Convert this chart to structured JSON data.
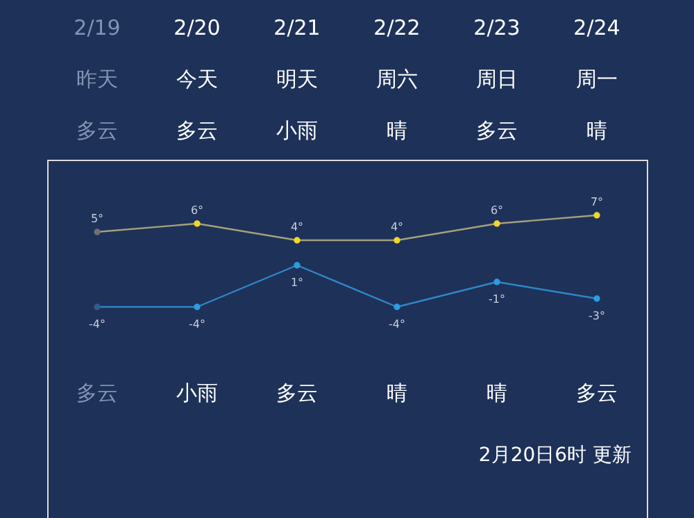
{
  "chart_data": {
    "type": "line",
    "categories": [
      "2/19",
      "2/20",
      "2/21",
      "2/22",
      "2/23",
      "2/24"
    ],
    "series": [
      {
        "color": "#a3a17c",
        "line_style": "solid",
        "colors": [
          "#6f6f6f",
          "#f0d72a",
          "#f0d72a",
          "#f0d72a",
          "#f0d72a",
          "#f0d72a"
        ],
        "values": [
          5,
          6,
          4,
          4,
          6,
          7
        ],
        "value_labels": [
          "5°",
          "6°",
          "4°",
          "4°",
          "6°",
          "7°"
        ]
      },
      {
        "color": "#2f86c8",
        "line_style": "solid",
        "colors": [
          "#2f5f86",
          "#2a9de0",
          "#2a9de0",
          "#2a9de0",
          "#2a9de0",
          "#2a9de0"
        ],
        "values": [
          -4,
          -4,
          1,
          -4,
          -1,
          -3
        ],
        "value_labels": [
          "-4°",
          "-4°",
          "1°",
          "-4°",
          "-1°",
          "-3°"
        ]
      }
    ],
    "marker": "circle",
    "grid": false,
    "annotations": [
      "昨天",
      "今天",
      "明天",
      "周六",
      "周日",
      "周一",
      "多云",
      "多云",
      "小雨",
      "晴",
      "多云",
      "晴",
      "多云",
      "小雨",
      "多云",
      "晴",
      "晴",
      "多云",
      "2月20日6时 更新"
    ]
  }
}
